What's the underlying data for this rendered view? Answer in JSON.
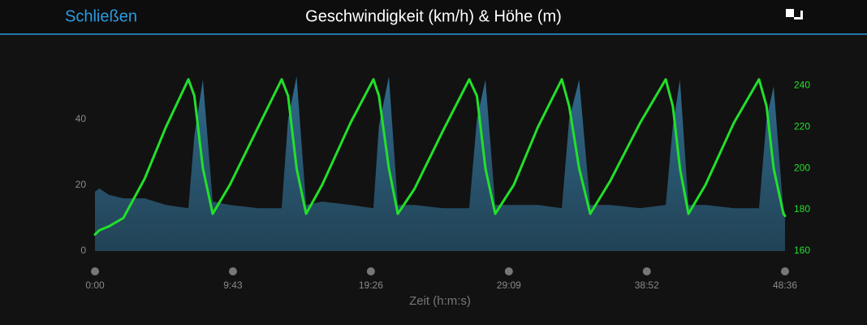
{
  "header": {
    "close": "Schließen"
  },
  "chart_data": {
    "type": "combo",
    "title": "Geschwindigkeit (km/h) & Höhe (m)",
    "x_label": "Zeit (h:m:s)",
    "x": [
      0,
      0.3,
      1.0,
      2.0,
      3.5,
      5.0,
      6.58,
      7.0,
      7.6,
      8.29,
      9.5,
      11.5,
      13.15,
      13.6,
      14.2,
      14.87,
      16.0,
      18.0,
      19.61,
      20.0,
      20.7,
      21.33,
      22.5,
      24.5,
      26.36,
      26.9,
      27.5,
      28.19,
      29.5,
      31.2,
      32.88,
      33.4,
      34.1,
      34.88,
      36.3,
      38.4,
      40.2,
      40.7,
      41.2,
      41.8,
      43.0,
      45.0,
      46.77,
      47.3,
      47.8,
      48.49,
      48.6
    ],
    "series": [
      {
        "type": "area",
        "color": "#2f6a8c",
        "axis": "y",
        "values": [
          18,
          19,
          17,
          16,
          16,
          14,
          13,
          35,
          52,
          15,
          14,
          13,
          13,
          40,
          53,
          14,
          15,
          14,
          13,
          38,
          53,
          14,
          14,
          13,
          13,
          40,
          52,
          14,
          14,
          14,
          13,
          40,
          52,
          14,
          14,
          13,
          14,
          38,
          52,
          14,
          14,
          13,
          13,
          40,
          50,
          12,
          12
        ]
      },
      {
        "type": "line",
        "color": "#22e02a",
        "axis": "y2",
        "values": [
          168,
          170,
          172,
          176,
          195,
          220,
          243,
          235,
          200,
          178,
          192,
          220,
          243,
          235,
          200,
          178,
          192,
          222,
          243,
          235,
          200,
          178,
          190,
          218,
          243,
          235,
          200,
          178,
          192,
          220,
          243,
          230,
          200,
          178,
          194,
          222,
          243,
          230,
          200,
          178,
          192,
          222,
          243,
          230,
          200,
          178,
          177
        ]
      }
    ],
    "xlim": [
      0,
      48.6
    ],
    "xticks": [
      {
        "value": 0,
        "label": "0:00"
      },
      {
        "value": 9.7167,
        "label": "9:43"
      },
      {
        "value": 19.4333,
        "label": "19:26"
      },
      {
        "value": 29.15,
        "label": "29:09"
      },
      {
        "value": 38.8667,
        "label": "38:52"
      },
      {
        "value": 48.6,
        "label": "48:36"
      }
    ],
    "ylim": [
      0,
      54
    ],
    "yticks": [
      0,
      20,
      40
    ],
    "y2lim": [
      160,
      246
    ],
    "y2ticks": [
      160,
      180,
      200,
      220,
      240
    ]
  }
}
